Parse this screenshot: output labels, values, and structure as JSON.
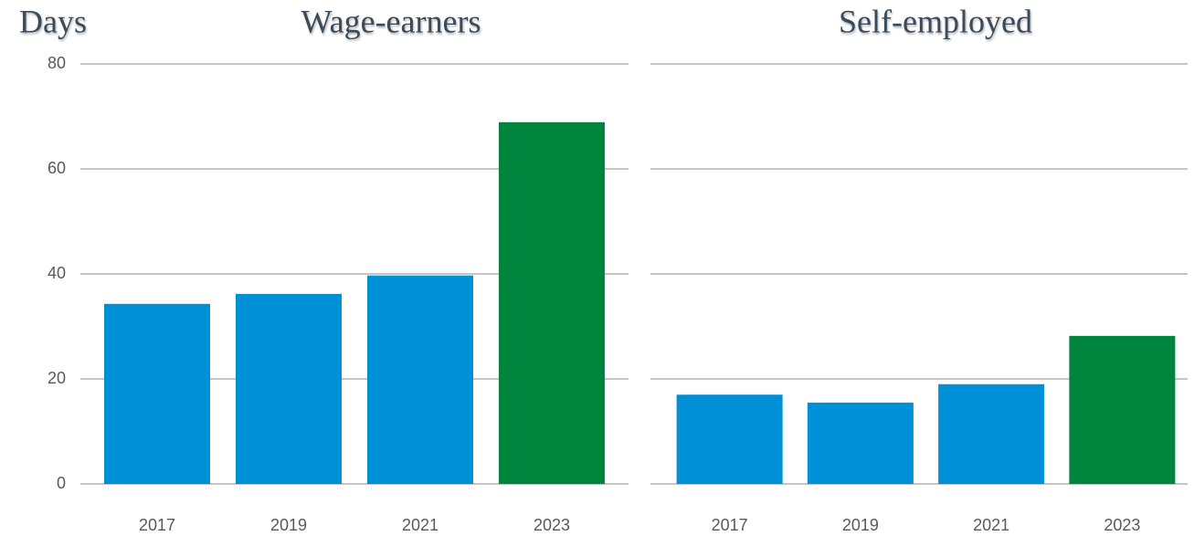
{
  "chart_data": [
    {
      "type": "bar",
      "title": "Wage-earners",
      "y_label": "Days",
      "categories": [
        "2017",
        "2019",
        "2021",
        "2023"
      ],
      "values": [
        34.3,
        36.2,
        39.7,
        68.9
      ],
      "colors": [
        "#0090d8",
        "#0090d8",
        "#0090d8",
        "#00853e"
      ],
      "ylim": [
        0,
        80
      ],
      "yticks": [
        0,
        20,
        40,
        60,
        80
      ],
      "grid": true,
      "ytick_labels": true
    },
    {
      "type": "bar",
      "title": "Self-employed",
      "categories": [
        "2017",
        "2019",
        "2021",
        "2023"
      ],
      "values": [
        17.0,
        15.5,
        19.0,
        28.2
      ],
      "colors": [
        "#0090d8",
        "#0090d8",
        "#0090d8",
        "#00853e"
      ],
      "ylim": [
        0,
        80
      ],
      "yticks": [
        0,
        20,
        40,
        60,
        80
      ],
      "grid": true,
      "ytick_labels": false
    }
  ]
}
